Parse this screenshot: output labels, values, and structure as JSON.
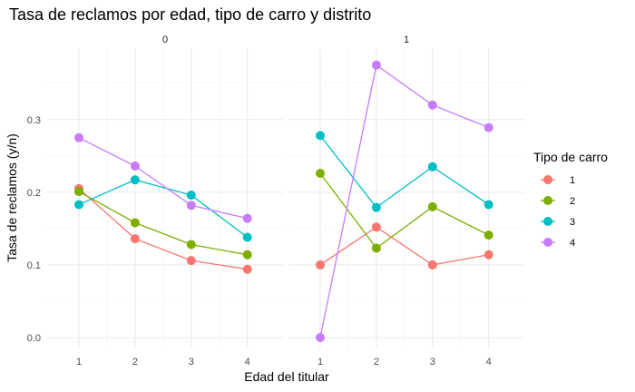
{
  "chart_data": {
    "type": "line",
    "title": "Tasa de reclamos por edad, tipo de carro y distrito",
    "xlabel": "Edad del titular",
    "ylabel": "Tasa de reclamos (y/n)",
    "x": [
      1,
      2,
      3,
      4
    ],
    "ylim": [
      0,
      0.375
    ],
    "yticks": [
      "0.0",
      "0.1",
      "0.2",
      "0.3"
    ],
    "grid": true,
    "legend": {
      "title": "Tipo de carro",
      "position": "right"
    },
    "panels": [
      {
        "label": "0",
        "series": [
          {
            "name": "1",
            "color": "#F8766D",
            "values": [
              0.205,
              0.136,
              0.106,
              0.094
            ]
          },
          {
            "name": "2",
            "color": "#7CAE00",
            "values": [
              0.201,
              0.158,
              0.128,
              0.114
            ]
          },
          {
            "name": "3",
            "color": "#00BFC4",
            "values": [
              0.183,
              0.217,
              0.196,
              0.138
            ]
          },
          {
            "name": "4",
            "color": "#C77CFF",
            "values": [
              0.275,
              0.236,
              0.182,
              0.164
            ]
          }
        ]
      },
      {
        "label": "1",
        "series": [
          {
            "name": "1",
            "color": "#F8766D",
            "values": [
              0.1,
              0.152,
              0.1,
              0.114
            ]
          },
          {
            "name": "2",
            "color": "#7CAE00",
            "values": [
              0.226,
              0.123,
              0.18,
              0.141
            ]
          },
          {
            "name": "3",
            "color": "#00BFC4",
            "values": [
              0.278,
              0.179,
              0.235,
              0.183
            ]
          },
          {
            "name": "4",
            "color": "#C77CFF",
            "values": [
              0.0,
              0.375,
              0.32,
              0.289
            ]
          }
        ]
      }
    ]
  }
}
